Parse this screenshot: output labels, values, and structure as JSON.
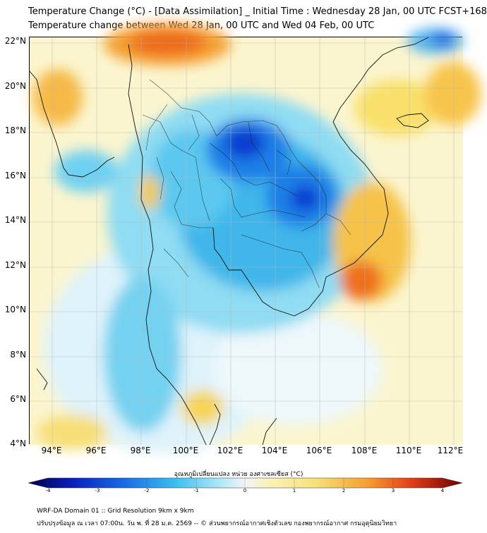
{
  "title_line1": "Temperature Change (°C) - [Data Assimilation] _ Initial Time : Wednesday 28 Jan, 00 UTC FCST+168",
  "title_line2": "Temperature change between Wed 28 Jan, 00 UTC and Wed 04 Feb, 00 UTC",
  "y_ticks": [
    "22°N",
    "20°N",
    "18°N",
    "16°N",
    "14°N",
    "12°N",
    "10°N",
    "8°N",
    "6°N",
    "4°N"
  ],
  "x_ticks": [
    "94°E",
    "96°E",
    "98°E",
    "100°E",
    "102°E",
    "104°E",
    "106°E",
    "108°E",
    "110°E",
    "112°E"
  ],
  "colorbar": {
    "label": "อุณหภูมิเปลี่ยนแปลง หน่วย องศาเซลเซียส (°C)",
    "ticks": [
      "-4",
      "-3",
      "-2",
      "-1",
      "0",
      "1",
      "2",
      "3",
      "4"
    ],
    "min": -4,
    "max": 4
  },
  "footer_line1": "WRF-DA Domain 01 :: Grid Resolution 9km x 9km",
  "footer_line2": "ปรับปรุงข้อมูล ณ เวลา 07:00น. วัน พ. ที่ 28 ม.ค. 2569 -- © ส่วนพยากรณ์อากาศเชิงตัวเลข กองพยากรณ์อากาศ กรมอุตุนิยมวิทยา",
  "colors": {
    "cold_max": "#00004a",
    "cold": "#1a6ae6",
    "cool": "#3cc0ef",
    "neutral": "#f4f4f4",
    "warm": "#f7e27a",
    "hot": "#f27a1e",
    "hot_max": "#6e0000"
  }
}
